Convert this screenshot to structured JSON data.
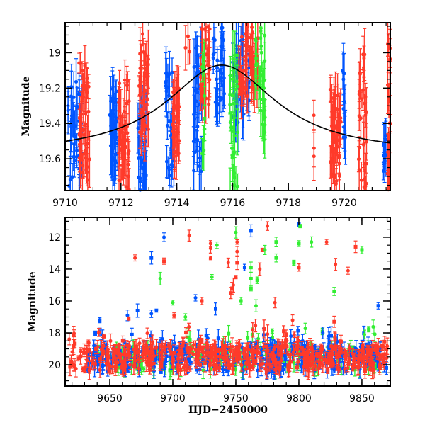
{
  "colors": {
    "blue": "#0055ff",
    "red": "#ff3a2a",
    "green": "#33ee33",
    "curve": "#000000",
    "frame": "#000000"
  },
  "chart_data": [
    {
      "id": "top",
      "type": "scatter",
      "title": "",
      "xlabel": "",
      "ylabel": "Magnitude",
      "xlim": [
        9710,
        9721.65
      ],
      "ylim": [
        19.78,
        18.83
      ],
      "y_inverted": true,
      "xticks_major": [
        9710,
        9712,
        9714,
        9716,
        9718,
        9720
      ],
      "xtick_labels": [
        "9710",
        "9712",
        "9714",
        "9716",
        "9718",
        "9720"
      ],
      "yticks_major": [
        19.0,
        19.2,
        19.4,
        19.6
      ],
      "ytick_labels": [
        "19",
        "19.2",
        "19.4",
        "19.6"
      ],
      "grid": false,
      "legend": "none",
      "model_curve": {
        "name": "microlensing model",
        "peak_x": 9715.6,
        "peak_mag": 19.07,
        "base_mag": 19.58,
        "timescale": 2.4
      },
      "series": [
        {
          "name": "blue",
          "clusters": [
            {
              "x": [
                9710.1,
                9710.6
              ],
              "mag_range": [
                19.1,
                19.8
              ],
              "n": 40
            },
            {
              "x": [
                9711.6,
                9711.9
              ],
              "mag_range": [
                19.2,
                19.8
              ],
              "n": 30
            },
            {
              "x": [
                9712.6,
                9712.9
              ],
              "mag_range": [
                19.3,
                19.8
              ],
              "n": 30
            },
            {
              "x": [
                9713.6,
                9713.9
              ],
              "mag_range": [
                19.1,
                19.75
              ],
              "n": 30
            },
            {
              "x": [
                9714.6,
                9714.9
              ],
              "mag_range": [
                18.9,
                19.7
              ],
              "n": 30
            },
            {
              "x": [
                9715.3,
                9715.7
              ],
              "mag_range": [
                18.85,
                19.35
              ],
              "n": 30
            },
            {
              "x": [
                9716.0,
                9716.4
              ],
              "mag_range": [
                18.9,
                19.4
              ],
              "n": 30
            },
            {
              "x": [
                9716.5,
                9716.6
              ],
              "mag_range": [
                18.9,
                19.4
              ],
              "n": 8
            },
            {
              "x": [
                9719.95,
                9720.05
              ],
              "mag_range": [
                19.1,
                19.55
              ],
              "n": 12
            },
            {
              "x": [
                9721.4,
                9721.5
              ],
              "mag_range": [
                19.45,
                19.7
              ],
              "n": 10
            }
          ]
        },
        {
          "name": "red",
          "clusters": [
            {
              "x": [
                9710.5,
                9710.9
              ],
              "mag_range": [
                19.05,
                19.75
              ],
              "n": 40
            },
            {
              "x": [
                9711.9,
                9712.3
              ],
              "mag_range": [
                19.15,
                19.8
              ],
              "n": 40
            },
            {
              "x": [
                9712.65,
                9713.0
              ],
              "mag_range": [
                18.85,
                19.5
              ],
              "n": 40
            },
            {
              "x": [
                9713.85,
                9714.1
              ],
              "mag_range": [
                19.2,
                19.6
              ],
              "n": 30
            },
            {
              "x": [
                9714.25,
                9714.5
              ],
              "mag_range": [
                18.9,
                19.0
              ],
              "n": 3
            },
            {
              "x": [
                9714.85,
                9715.2
              ],
              "mag_range": [
                18.85,
                19.3
              ],
              "n": 30
            },
            {
              "x": [
                9716.2,
                9716.9
              ],
              "mag_range": [
                18.85,
                19.25
              ],
              "n": 40
            },
            {
              "x": [
                9718.9,
                9718.95
              ],
              "mag_range": [
                19.35,
                19.6
              ],
              "n": 3
            },
            {
              "x": [
                9719.5,
                9719.9
              ],
              "mag_range": [
                19.2,
                19.75
              ],
              "n": 40
            },
            {
              "x": [
                9720.5,
                9720.8
              ],
              "mag_range": [
                19.0,
                19.8
              ],
              "n": 30
            },
            {
              "x": [
                9721.55,
                9721.65
              ],
              "mag_range": [
                18.95,
                19.8
              ],
              "n": 20
            }
          ]
        },
        {
          "name": "green",
          "clusters": [
            {
              "x": [
                9714.9,
                9715.0
              ],
              "mag_range": [
                19.0,
                19.7
              ],
              "n": 10
            },
            {
              "x": [
                9715.9,
                9716.2
              ],
              "mag_range": [
                19.0,
                19.8
              ],
              "n": 30
            },
            {
              "x": [
                9716.8,
                9717.2
              ],
              "mag_range": [
                18.85,
                19.5
              ],
              "n": 30
            }
          ]
        }
      ]
    },
    {
      "id": "bottom",
      "type": "scatter",
      "title": "",
      "xlabel": "HJD−2450000",
      "ylabel": "Magnitude",
      "xlim": [
        9614.6,
        9872.5
      ],
      "ylim": [
        21.33,
        10.76
      ],
      "y_inverted": true,
      "xticks_major": [
        9650,
        9700,
        9750,
        9800,
        9850
      ],
      "xtick_labels": [
        "9650",
        "9700",
        "9750",
        "9800",
        "9850"
      ],
      "yticks_major": [
        12,
        14,
        16,
        18,
        20
      ],
      "ytick_labels": [
        "12",
        "14",
        "16",
        "18",
        "20"
      ],
      "grid": false,
      "legend": "none",
      "baseline_band": {
        "mag_center": 19.6,
        "mag_spread": 0.8
      },
      "outliers": [
        {
          "series": "blue",
          "x": 9693,
          "mag": 12.0
        },
        {
          "series": "blue",
          "x": 9683,
          "mag": 13.3
        },
        {
          "series": "blue",
          "x": 9642,
          "mag": 17.2
        },
        {
          "series": "blue",
          "x": 9664,
          "mag": 16.9
        },
        {
          "series": "blue",
          "x": 9672,
          "mag": 16.6
        },
        {
          "series": "blue",
          "x": 9683,
          "mag": 16.8
        },
        {
          "series": "blue",
          "x": 9687,
          "mag": 16.6
        },
        {
          "series": "blue",
          "x": 9718,
          "mag": 15.8
        },
        {
          "series": "blue",
          "x": 9734,
          "mag": 16.5
        },
        {
          "series": "blue",
          "x": 9762,
          "mag": 11.6
        },
        {
          "series": "blue",
          "x": 9800,
          "mag": 11.2
        },
        {
          "series": "blue",
          "x": 9757,
          "mag": 13.9
        },
        {
          "series": "blue",
          "x": 9863,
          "mag": 16.3
        },
        {
          "series": "blue",
          "x": 9819,
          "mag": 18.0
        },
        {
          "series": "red",
          "x": 9713,
          "mag": 11.9
        },
        {
          "series": "red",
          "x": 9730,
          "mag": 12.4
        },
        {
          "series": "red",
          "x": 9730,
          "mag": 12.7
        },
        {
          "series": "red",
          "x": 9730,
          "mag": 13.3
        },
        {
          "series": "red",
          "x": 9693,
          "mag": 13.5
        },
        {
          "series": "red",
          "x": 9670,
          "mag": 13.3
        },
        {
          "series": "red",
          "x": 9751,
          "mag": 12.3
        },
        {
          "series": "red",
          "x": 9751,
          "mag": 12.9
        },
        {
          "series": "red",
          "x": 9751,
          "mag": 13.6
        },
        {
          "series": "red",
          "x": 9750,
          "mag": 14.5
        },
        {
          "series": "red",
          "x": 9748,
          "mag": 15.0
        },
        {
          "series": "red",
          "x": 9747,
          "mag": 15.2
        },
        {
          "series": "red",
          "x": 9746,
          "mag": 15.5
        },
        {
          "series": "red",
          "x": 9744,
          "mag": 13.6
        },
        {
          "series": "red",
          "x": 9775,
          "mag": 11.3
        },
        {
          "series": "red",
          "x": 9771,
          "mag": 12.8
        },
        {
          "series": "red",
          "x": 9769,
          "mag": 14.0
        },
        {
          "series": "red",
          "x": 9800,
          "mag": 13.9
        },
        {
          "series": "red",
          "x": 9822,
          "mag": 12.3
        },
        {
          "series": "red",
          "x": 9829,
          "mag": 13.7
        },
        {
          "series": "red",
          "x": 9839,
          "mag": 14.1
        },
        {
          "series": "red",
          "x": 9845,
          "mag": 12.6
        },
        {
          "series": "red",
          "x": 9665,
          "mag": 17.1
        },
        {
          "series": "red",
          "x": 9701,
          "mag": 16.9
        },
        {
          "series": "red",
          "x": 9723,
          "mag": 16.0
        },
        {
          "series": "red",
          "x": 9781,
          "mag": 16.1
        },
        {
          "series": "red",
          "x": 9795,
          "mag": 17.2
        },
        {
          "series": "red",
          "x": 9828,
          "mag": 17.3
        },
        {
          "series": "green",
          "x": 9690,
          "mag": 14.6
        },
        {
          "series": "green",
          "x": 9731,
          "mag": 14.5
        },
        {
          "series": "green",
          "x": 9735,
          "mag": 12.5
        },
        {
          "series": "green",
          "x": 9700,
          "mag": 16.1
        },
        {
          "series": "green",
          "x": 9710,
          "mag": 17.0
        },
        {
          "series": "green",
          "x": 9750,
          "mag": 11.7
        },
        {
          "series": "green",
          "x": 9762,
          "mag": 13.9
        },
        {
          "series": "green",
          "x": 9762,
          "mag": 14.6
        },
        {
          "series": "green",
          "x": 9762,
          "mag": 15.2
        },
        {
          "series": "green",
          "x": 9773,
          "mag": 12.8
        },
        {
          "series": "green",
          "x": 9782,
          "mag": 12.3
        },
        {
          "series": "green",
          "x": 9782,
          "mag": 13.3
        },
        {
          "series": "green",
          "x": 9796,
          "mag": 13.6
        },
        {
          "series": "green",
          "x": 9800,
          "mag": 12.4
        },
        {
          "series": "green",
          "x": 9801,
          "mag": 11.3
        },
        {
          "series": "green",
          "x": 9766,
          "mag": 16.3
        },
        {
          "series": "green",
          "x": 9767,
          "mag": 14.7
        },
        {
          "series": "green",
          "x": 9810,
          "mag": 12.3
        },
        {
          "series": "green",
          "x": 9850,
          "mag": 12.8
        },
        {
          "series": "green",
          "x": 9754,
          "mag": 16.0
        },
        {
          "series": "green",
          "x": 9828,
          "mag": 15.4
        },
        {
          "series": "green",
          "x": 9852,
          "mag": 18.1
        }
      ],
      "series_segments": [
        {
          "series": "red",
          "x": [
            9617,
            9872
          ],
          "n": 500
        },
        {
          "series": "blue",
          "x": [
            9632,
            9870
          ],
          "n": 350
        },
        {
          "series": "green",
          "x": [
            9640,
            9865
          ],
          "n": 200
        },
        {
          "series": "blue",
          "x": [
            9774,
            9786
          ],
          "n": 80,
          "dense": true
        }
      ]
    }
  ]
}
